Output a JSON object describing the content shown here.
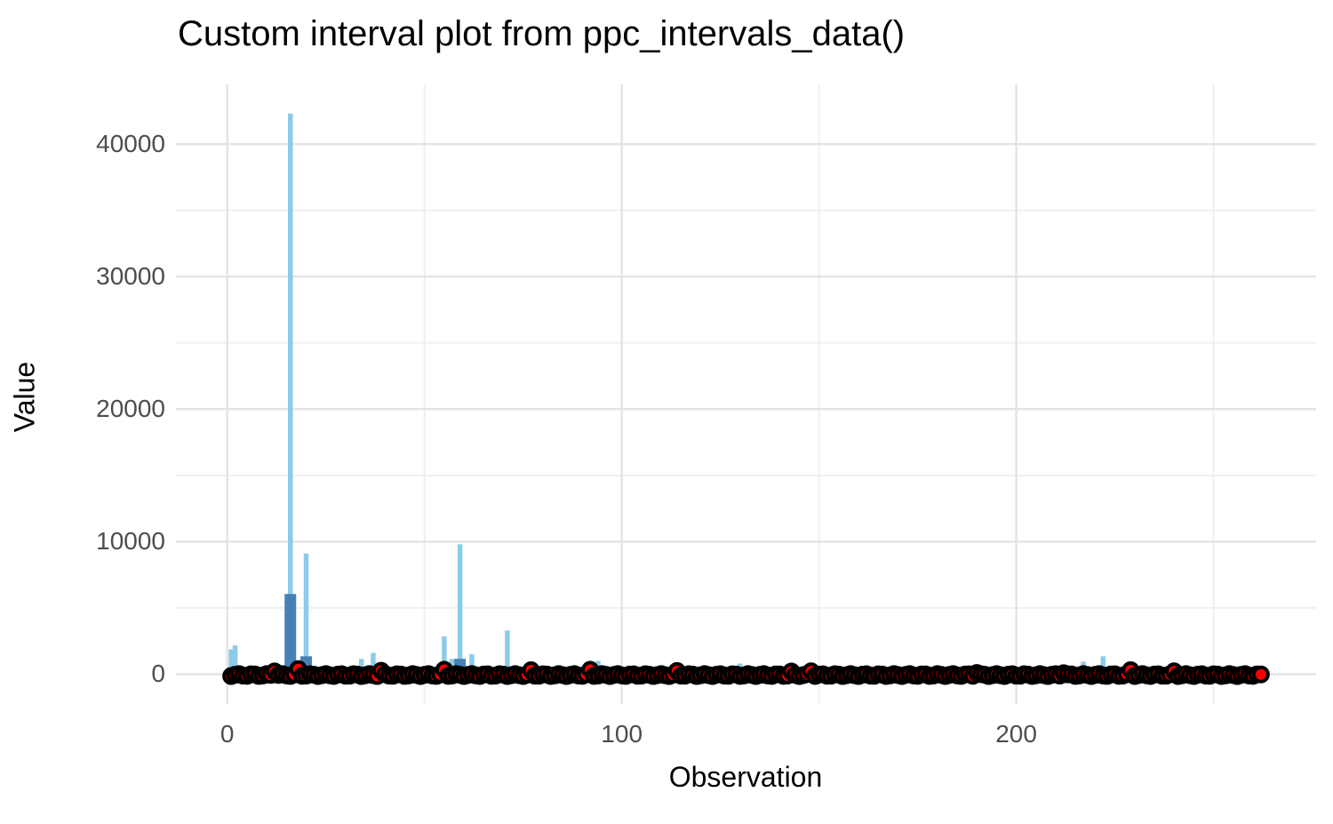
{
  "figure": {
    "title": "Custom interval plot from ppc_intervals_data()"
  },
  "chart_data": {
    "type": "interval",
    "title": "Custom interval plot from ppc_intervals_data()",
    "xlabel": "Observation",
    "ylabel": "Value",
    "x_ticks": [
      0,
      100,
      200
    ],
    "x_minor_ticks": [
      50,
      150,
      250
    ],
    "y_ticks": [
      0,
      10000,
      20000,
      30000,
      40000
    ],
    "y_minor_ticks": [
      5000,
      15000,
      25000,
      35000
    ],
    "x_range": [
      -13,
      276
    ],
    "y_range": [
      -2250,
      44500
    ],
    "grid": true,
    "legend": false,
    "n_observations": 262,
    "observed_points": {
      "value_approx": 0,
      "fill_color": "#F80000",
      "outline_color": "#000000",
      "note": "262 red points with black outline clustered at y ≈ 0 for every observation"
    },
    "raised_points": [
      {
        "x": 12,
        "y": 350
      },
      {
        "x": 18,
        "y": 400
      },
      {
        "x": 39,
        "y": 300
      },
      {
        "x": 55,
        "y": 350
      },
      {
        "x": 77,
        "y": 300
      },
      {
        "x": 92,
        "y": 350
      },
      {
        "x": 114,
        "y": 250
      },
      {
        "x": 143,
        "y": 200
      },
      {
        "x": 148,
        "y": 300
      },
      {
        "x": 190,
        "y": 200
      },
      {
        "x": 212,
        "y": 200
      },
      {
        "x": 229,
        "y": 350
      },
      {
        "x": 240,
        "y": 250
      }
    ],
    "outer_intervals": {
      "color": "#8CCBE9",
      "segments": [
        {
          "x": 1,
          "lo": 0,
          "hi": 1880
        },
        {
          "x": 2,
          "lo": 0,
          "hi": 2170
        },
        {
          "x": 16,
          "lo": 0,
          "hi": 42300
        },
        {
          "x": 20,
          "lo": 0,
          "hi": 9100
        },
        {
          "x": 34,
          "lo": 0,
          "hi": 1150
        },
        {
          "x": 37,
          "lo": 0,
          "hi": 1600
        },
        {
          "x": 55,
          "lo": 0,
          "hi": 2850
        },
        {
          "x": 57,
          "lo": 0,
          "hi": 1150
        },
        {
          "x": 59,
          "lo": 0,
          "hi": 9800
        },
        {
          "x": 62,
          "lo": 0,
          "hi": 1500
        },
        {
          "x": 71,
          "lo": 0,
          "hi": 3300
        },
        {
          "x": 94,
          "lo": 0,
          "hi": 1000
        },
        {
          "x": 130,
          "lo": 0,
          "hi": 800
        },
        {
          "x": 217,
          "lo": 0,
          "hi": 950
        },
        {
          "x": 222,
          "lo": 0,
          "hi": 1350
        }
      ]
    },
    "inner_intervals": {
      "color": "#4681B4",
      "segments": [
        {
          "x": 16,
          "lo": 0,
          "hi": 6050
        },
        {
          "x": 20,
          "lo": 0,
          "hi": 1350
        },
        {
          "x": 59,
          "lo": 0,
          "hi": 1160
        }
      ]
    },
    "style": {
      "grid_major_color": "#E4E4E4",
      "grid_minor_color": "#F0F0F0",
      "tick_label_color": "#4D4D4D",
      "panel_background": "#FFFFFF"
    }
  }
}
